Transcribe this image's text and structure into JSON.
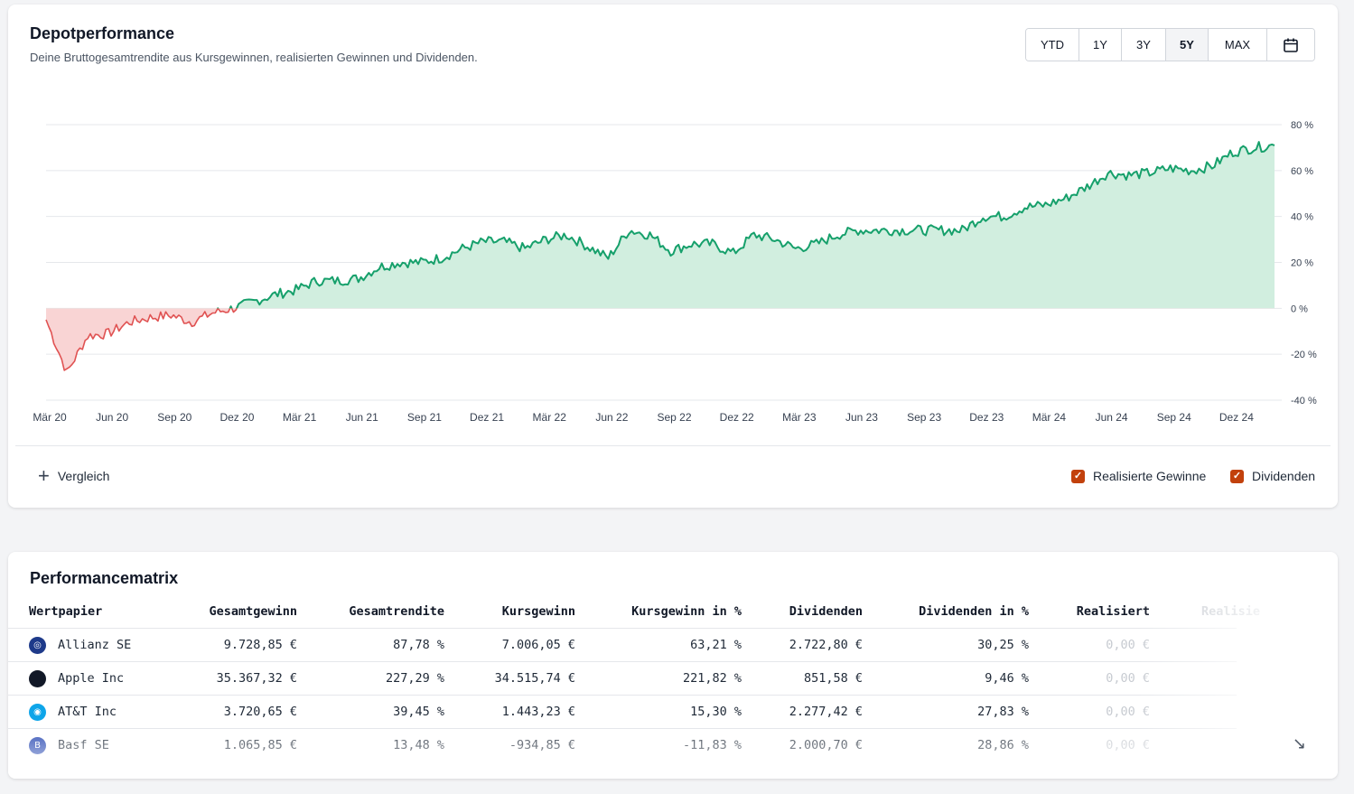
{
  "performance": {
    "title": "Depotperformance",
    "subtitle": "Deine Bruttogesamtrendite aus Kursgewinnen, realisierten Gewinnen und Dividenden.",
    "ranges": [
      {
        "label": "YTD",
        "active": false
      },
      {
        "label": "1Y",
        "active": false
      },
      {
        "label": "3Y",
        "active": false
      },
      {
        "label": "5Y",
        "active": true
      },
      {
        "label": "MAX",
        "active": false
      }
    ],
    "calendar_icon": "calendar-icon",
    "compare_label": "Vergleich",
    "compare_icon": "plus-icon",
    "checkboxes": [
      {
        "label": "Realisierte Gewinne",
        "checked": true
      },
      {
        "label": "Dividenden",
        "checked": true
      }
    ]
  },
  "chart_data": {
    "type": "area",
    "x": [
      "2020-03",
      "2020-04",
      "2020-05",
      "2020-06",
      "2020-07",
      "2020-08",
      "2020-09",
      "2020-10",
      "2020-11",
      "2020-12",
      "2021-01",
      "2021-02",
      "2021-03",
      "2021-04",
      "2021-05",
      "2021-06",
      "2021-07",
      "2021-08",
      "2021-09",
      "2021-10",
      "2021-11",
      "2021-12",
      "2022-01",
      "2022-02",
      "2022-03",
      "2022-04",
      "2022-05",
      "2022-06",
      "2022-07",
      "2022-08",
      "2022-09",
      "2022-10",
      "2022-11",
      "2022-12",
      "2023-01",
      "2023-02",
      "2023-03",
      "2023-04",
      "2023-05",
      "2023-06",
      "2023-07",
      "2023-08",
      "2023-09",
      "2023-10",
      "2023-11",
      "2023-12",
      "2024-01",
      "2024-02",
      "2024-03",
      "2024-04",
      "2024-05",
      "2024-06",
      "2024-07",
      "2024-08",
      "2024-09",
      "2024-10",
      "2024-11",
      "2024-12",
      "2025-01",
      "2025-02"
    ],
    "values": [
      -5,
      -28,
      -12,
      -11,
      -6,
      -4,
      -3,
      -6,
      -2,
      0,
      3,
      6,
      8,
      12,
      12,
      13,
      18,
      20,
      20,
      22,
      26,
      29,
      29,
      26,
      30,
      32,
      27,
      22,
      34,
      32,
      25,
      28,
      28,
      24,
      32,
      30,
      26,
      28,
      32,
      34,
      34,
      34,
      34,
      34,
      34,
      40,
      40,
      44,
      45,
      48,
      53,
      59,
      58,
      59,
      61,
      60,
      62,
      68,
      70,
      71
    ],
    "ylim": [
      -40,
      80
    ],
    "y_ticks": [
      80,
      60,
      40,
      20,
      0,
      -20,
      -40
    ],
    "y_tick_labels": [
      "80 %",
      "60 %",
      "40 %",
      "20 %",
      "0 %",
      "-20 %",
      "-40 %"
    ],
    "x_tick_labels": [
      "Mär 20",
      "Jun 20",
      "Sep 20",
      "Dez 20",
      "Mär 21",
      "Jun 21",
      "Sep 21",
      "Dez 21",
      "Mär 22",
      "Jun 22",
      "Sep 22",
      "Dez 22",
      "Mär 23",
      "Jun 23",
      "Sep 23",
      "Dez 23",
      "Mär 24",
      "Jun 24",
      "Sep 24",
      "Dez 24"
    ],
    "grid": true,
    "positive_color": "#16a06b",
    "positive_fill": "#d1eedf",
    "negative_color": "#e05252",
    "negative_fill": "#f9d4d4"
  },
  "matrix": {
    "title": "Performancematrix",
    "columns": [
      "Wertpapier",
      "Gesamtgewinn",
      "Gesamtrendite",
      "Kursgewinn",
      "Kursgewinn in %",
      "Dividenden",
      "Dividenden in %",
      "Realisiert",
      "Realisie"
    ],
    "rows": [
      {
        "name": "Allianz SE",
        "icon": "allianz-logo-icon",
        "icon_color": "#1e3a8a",
        "cells": [
          "9.728,85 €",
          "87,78 %",
          "7.006,05 €",
          "63,21 %",
          "2.722,80 €",
          "30,25 %",
          "0,00 €"
        ]
      },
      {
        "name": "Apple Inc",
        "icon": "apple-logo-icon",
        "icon_color": "#111827",
        "cells": [
          "35.367,32 €",
          "227,29 %",
          "34.515,74 €",
          "221,82 %",
          "851,58 €",
          "9,46 %",
          "0,00 €"
        ]
      },
      {
        "name": "AT&T Inc",
        "icon": "att-logo-icon",
        "icon_color": "#0ea5e9",
        "cells": [
          "3.720,65 €",
          "39,45 %",
          "1.443,23 €",
          "15,30 %",
          "2.277,42 €",
          "27,83 %",
          "0,00 €"
        ]
      },
      {
        "name": "Basf SE",
        "icon": "basf-logo-icon",
        "icon_color": "#1e40af",
        "cells": [
          "1.065,85 €",
          "13,48 %",
          "-934,85 €",
          "-11,83 %",
          "2.000,70 €",
          "28,86 %",
          "0,00 €"
        ]
      }
    ],
    "expand_icon": "expand-arrow-icon"
  }
}
